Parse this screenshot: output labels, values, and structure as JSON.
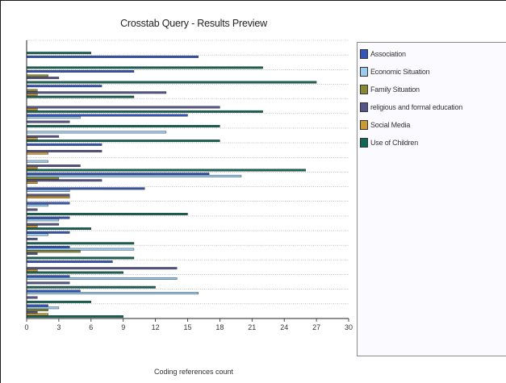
{
  "chart_data": {
    "type": "bar",
    "orientation": "horizontal",
    "title": "Crosstab Query - Results Preview",
    "xlabel": "Coding references count",
    "ylabel": "",
    "xlim": [
      0,
      30
    ],
    "x_ticks": [
      "0",
      "3",
      "6",
      "9",
      "12",
      "15",
      "18",
      "21",
      "24",
      "27",
      "30"
    ],
    "grid": "dotted horizontal",
    "legend_placement": "right",
    "series": [
      {
        "name": "Association",
        "color": "#3355bb"
      },
      {
        "name": "Economic Situation",
        "color": "#99ccee"
      },
      {
        "name": "Family Situation",
        "color": "#888833"
      },
      {
        "name": "religious and formal education",
        "color": "#555588"
      },
      {
        "name": "Social Media",
        "color": "#cc9933"
      },
      {
        "name": "Use of Children",
        "color": "#116655"
      }
    ],
    "groups": [
      {
        "values": [
          0,
          0,
          0,
          0,
          0,
          6
        ]
      },
      {
        "values": [
          16,
          0,
          0,
          0,
          0,
          22
        ]
      },
      {
        "values": [
          10,
          0,
          2,
          3,
          0,
          27
        ]
      },
      {
        "values": [
          7,
          0,
          1,
          13,
          1,
          10
        ]
      },
      {
        "values": [
          0,
          0,
          0,
          18,
          1,
          22
        ]
      },
      {
        "values": [
          15,
          5,
          0,
          4,
          0,
          18
        ]
      },
      {
        "values": [
          0,
          13,
          0,
          3,
          1,
          18
        ]
      },
      {
        "values": [
          7,
          0,
          0,
          7,
          2,
          0
        ]
      },
      {
        "values": [
          0,
          2,
          0,
          5,
          1,
          26
        ]
      },
      {
        "values": [
          17,
          20,
          3,
          7,
          1,
          0
        ]
      },
      {
        "values": [
          11,
          4,
          0,
          4,
          4,
          0
        ]
      },
      {
        "values": [
          4,
          2,
          0,
          1,
          0,
          15
        ]
      },
      {
        "values": [
          4,
          3,
          0,
          3,
          1,
          6
        ]
      },
      {
        "values": [
          4,
          2,
          0,
          1,
          0,
          10
        ]
      },
      {
        "values": [
          4,
          10,
          5,
          1,
          0,
          10
        ]
      },
      {
        "values": [
          8,
          0,
          0,
          14,
          1,
          9
        ]
      },
      {
        "values": [
          4,
          14,
          0,
          4,
          0,
          12
        ]
      },
      {
        "values": [
          5,
          16,
          0,
          1,
          0,
          6
        ]
      },
      {
        "values": [
          2,
          3,
          2,
          1,
          2,
          9
        ]
      }
    ]
  }
}
